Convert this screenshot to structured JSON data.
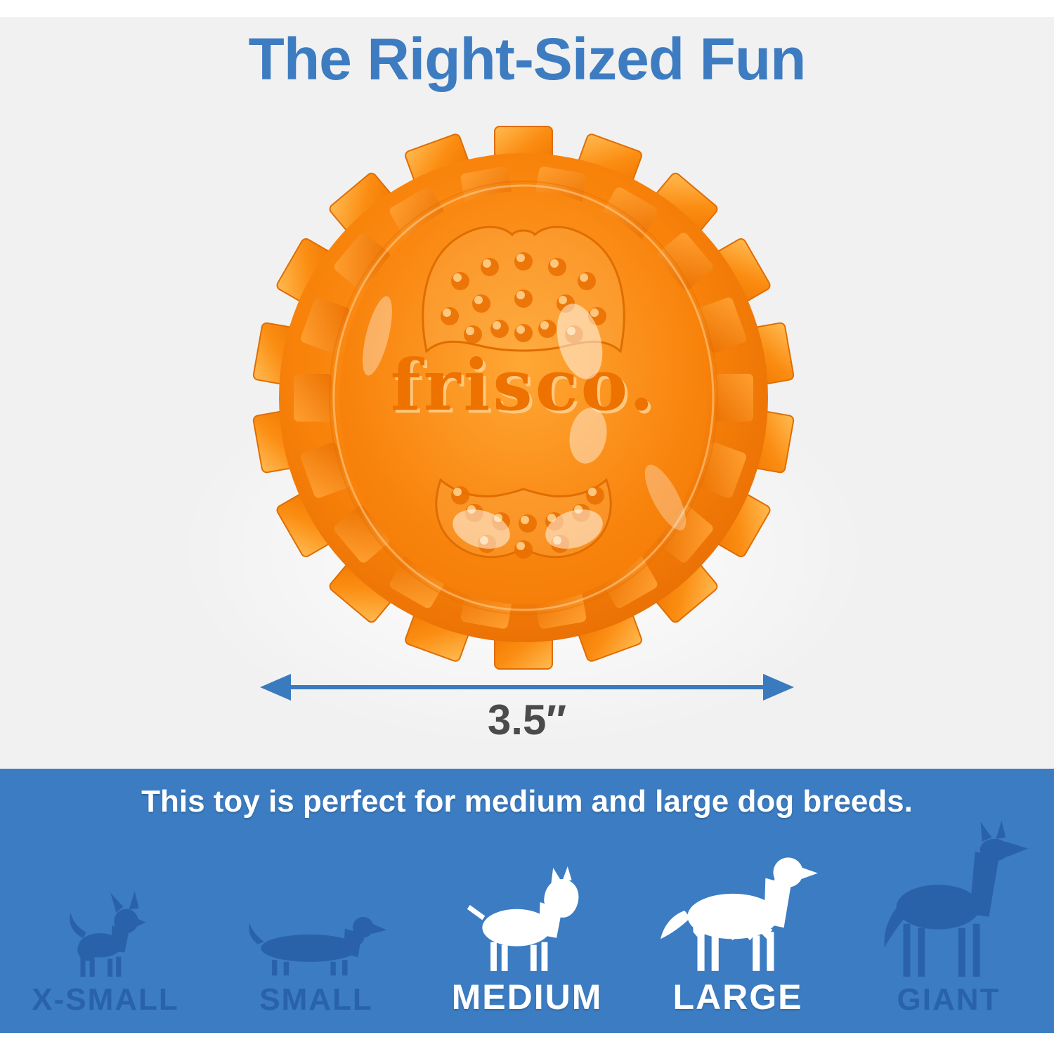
{
  "page": {
    "title": "The Right-Sized Fun",
    "title_color": "#3d7cc1",
    "background_color": "#f1f1f1"
  },
  "product": {
    "embossed_brand": "frisco.",
    "ball_color": "#f8820a"
  },
  "measurement": {
    "diameter": "3.5″",
    "arrow_icon": "double-headed-arrow",
    "arrow_color": "#3a7abf",
    "text_color": "#4b4b4b"
  },
  "banner": {
    "message": "This toy is perfect for medium and large dog breeds.",
    "background_color": "#3b7cc2",
    "muted_color": "#2a62a9",
    "highlight_color": "#ffffff",
    "sizes": [
      {
        "label": "X-SMALL",
        "icon": "chihuahua-silhouette",
        "highlighted": false
      },
      {
        "label": "SMALL",
        "icon": "dachshund-silhouette",
        "highlighted": false
      },
      {
        "label": "MEDIUM",
        "icon": "bull-terrier-silhouette",
        "highlighted": true
      },
      {
        "label": "LARGE",
        "icon": "golden-retriever-silhouette",
        "highlighted": true
      },
      {
        "label": "GIANT",
        "icon": "great-dane-silhouette",
        "highlighted": false
      }
    ]
  }
}
